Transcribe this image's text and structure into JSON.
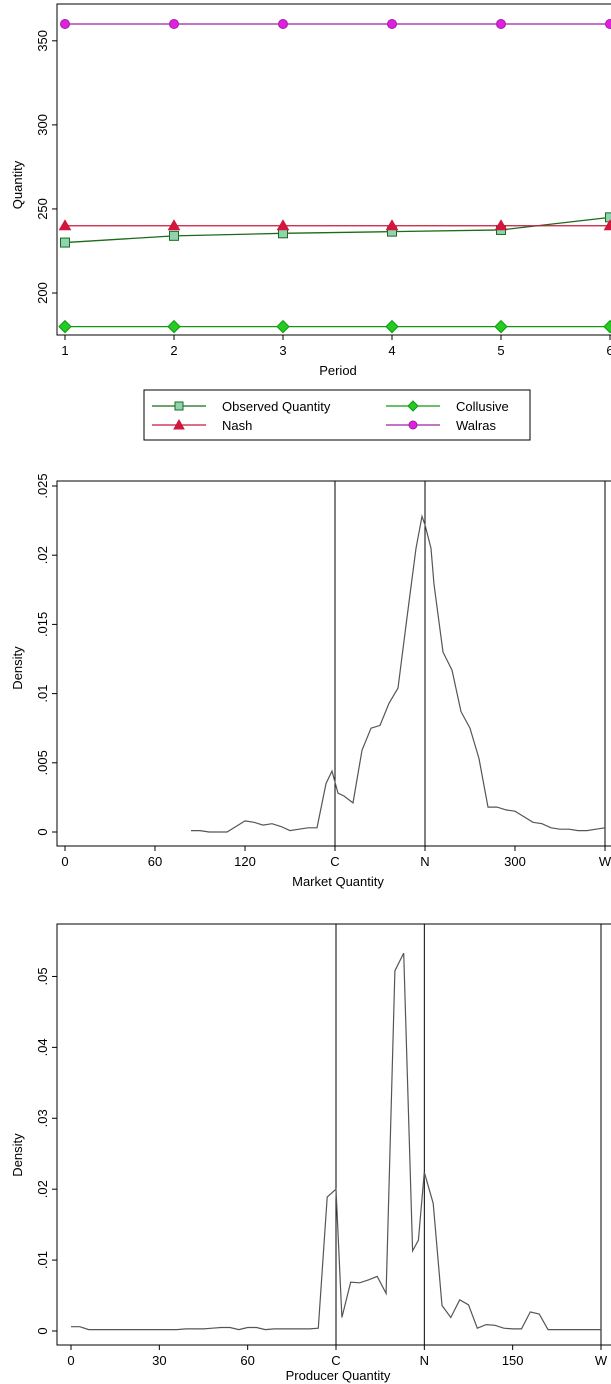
{
  "chart_data": [
    {
      "type": "line",
      "xlabel": "Period",
      "ylabel": "Quantity",
      "x": [
        1,
        2,
        3,
        4,
        5,
        6
      ],
      "xticks": [
        "1",
        "2",
        "3",
        "4",
        "5",
        "6"
      ],
      "yticks": [
        "200",
        "250",
        "300",
        "350"
      ],
      "ylim": [
        175,
        365
      ],
      "series": [
        {
          "name": "Observed Quantity",
          "values": [
            230,
            234,
            235.5,
            236.5,
            237.5,
            245
          ],
          "color": "#1a6b1a",
          "fill": "#8fd3b0",
          "marker": "square"
        },
        {
          "name": "Nash",
          "values": [
            240,
            240,
            240,
            240,
            240,
            240
          ],
          "color": "#c8193c",
          "fill": "#d8143c",
          "marker": "triangle"
        },
        {
          "name": "Collusive",
          "values": [
            180,
            180,
            180,
            180,
            180,
            180
          ],
          "color": "#119911",
          "fill": "#22cc22",
          "marker": "diamond"
        },
        {
          "name": "Walras",
          "values": [
            360,
            360,
            360,
            360,
            360,
            360
          ],
          "color": "#a020a0",
          "fill": "#e020e0",
          "marker": "circle"
        }
      ],
      "legend_position": "bottom"
    },
    {
      "type": "line",
      "xlabel": "Market Quantity",
      "ylabel": "Density",
      "xlim": [
        0,
        360
      ],
      "ylim": [
        0,
        0.025
      ],
      "xticks": [
        {
          "value": 0,
          "label": "0"
        },
        {
          "value": 60,
          "label": "60"
        },
        {
          "value": 120,
          "label": "120"
        },
        {
          "value": 180,
          "label": "C"
        },
        {
          "value": 240,
          "label": "N"
        },
        {
          "value": 300,
          "label": "300"
        },
        {
          "value": 360,
          "label": "W"
        }
      ],
      "yticks": [
        "0",
        ".005",
        ".01",
        ".015",
        ".02",
        ".025"
      ],
      "vlines": [
        180,
        240,
        360
      ],
      "line_color": "#555555",
      "x": [
        84,
        90,
        96,
        102,
        108,
        114,
        120,
        126,
        132,
        138,
        144,
        150,
        156,
        162,
        168,
        174,
        178,
        182,
        186,
        192,
        198,
        204,
        210,
        216,
        222,
        228,
        234,
        238,
        240,
        244,
        246,
        252,
        258,
        264,
        270,
        276,
        282,
        288,
        294,
        300,
        306,
        312,
        318,
        324,
        330,
        336,
        342,
        348,
        354,
        360
      ],
      "y": [
        0.0001,
        0.0001,
        0.0,
        0.0,
        0.0,
        0.0004,
        0.0008,
        0.0007,
        0.0005,
        0.0006,
        0.0004,
        0.0001,
        0.0002,
        0.0003,
        0.0003,
        0.0035,
        0.0044,
        0.0028,
        0.0026,
        0.0021,
        0.0059,
        0.0075,
        0.0077,
        0.0093,
        0.0104,
        0.0155,
        0.0205,
        0.0228,
        0.0222,
        0.0205,
        0.0179,
        0.013,
        0.0117,
        0.0087,
        0.0075,
        0.0053,
        0.0018,
        0.0018,
        0.0016,
        0.0015,
        0.0011,
        0.0007,
        0.0006,
        0.0003,
        0.0002,
        0.0002,
        0.0001,
        0.0001,
        0.0002,
        0.0003
      ]
    },
    {
      "type": "line",
      "xlabel": "Producer Quantity",
      "ylabel": "Density",
      "xlim": [
        0,
        90
      ],
      "ylim": [
        0,
        0.055
      ],
      "xticks": [
        {
          "value": 0,
          "label": "0"
        },
        {
          "value": 15,
          "label": "30"
        },
        {
          "value": 30,
          "label": "60"
        },
        {
          "value": 45,
          "label": "C"
        },
        {
          "value": 60,
          "label": "N"
        },
        {
          "value": 75,
          "label": "150"
        },
        {
          "value": 90,
          "label": "W"
        }
      ],
      "yticks": [
        "0",
        ".01",
        ".02",
        ".03",
        ".04",
        ".05"
      ],
      "vlines": [
        45,
        60,
        90
      ],
      "line_color": "#555555",
      "x": [
        0,
        1.5,
        3,
        4.5,
        6,
        7.5,
        9,
        10.5,
        12,
        13.5,
        15,
        16.5,
        18,
        19.5,
        21,
        22.5,
        24,
        25.5,
        27,
        28.5,
        30,
        31.5,
        33,
        34.5,
        36,
        37.5,
        39,
        40.5,
        42,
        43.5,
        45,
        46,
        47.5,
        49,
        50.5,
        52,
        53.5,
        55,
        56.5,
        58,
        59,
        60,
        61.5,
        63,
        64.5,
        66,
        67.5,
        69,
        70.5,
        72,
        73.5,
        75,
        76.5,
        78,
        79.5,
        81,
        82.5,
        84,
        85.5,
        87,
        88.5,
        90
      ],
      "y": [
        0.0006,
        0.0006,
        0.0002,
        0.0002,
        0.0002,
        0.0002,
        0.0002,
        0.0002,
        0.0002,
        0.0002,
        0.0002,
        0.0002,
        0.0002,
        0.0003,
        0.0003,
        0.0003,
        0.0004,
        0.0005,
        0.0005,
        0.0002,
        0.0005,
        0.0005,
        0.0002,
        0.0003,
        0.0003,
        0.0003,
        0.0003,
        0.0003,
        0.0004,
        0.0189,
        0.02,
        0.0019,
        0.0069,
        0.0068,
        0.0072,
        0.0077,
        0.0053,
        0.0508,
        0.0533,
        0.0113,
        0.0128,
        0.0224,
        0.018,
        0.0036,
        0.0019,
        0.0044,
        0.0037,
        0.0004,
        0.0009,
        0.0008,
        0.0004,
        0.0003,
        0.0003,
        0.0027,
        0.0024,
        0.0002,
        0.0002,
        0.0002,
        0.0002,
        0.0002,
        0.0002,
        0.0002
      ]
    }
  ]
}
